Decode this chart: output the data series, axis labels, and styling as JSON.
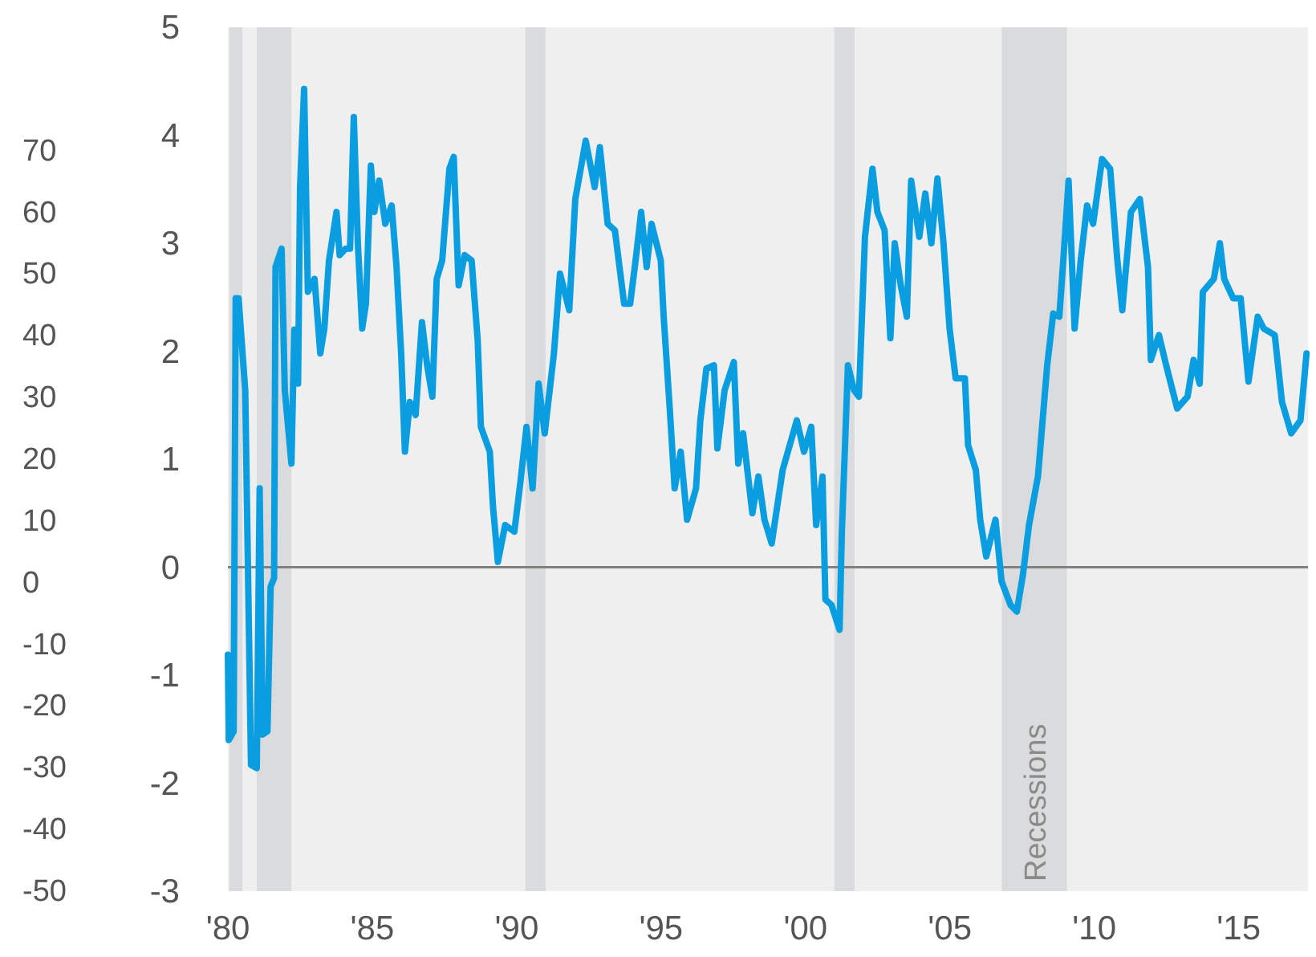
{
  "chart_data": {
    "type": "line",
    "grid": false,
    "marker": "none",
    "line_style": "solid",
    "xlim": [
      1980,
      2017.4
    ],
    "xticks": [
      {
        "value": 1980,
        "label": "'80"
      },
      {
        "value": 1985,
        "label": "'85"
      },
      {
        "value": 1990,
        "label": "'90"
      },
      {
        "value": 1995,
        "label": "'95"
      },
      {
        "value": 2000,
        "label": "'00"
      },
      {
        "value": 2005,
        "label": "'05"
      },
      {
        "value": 2010,
        "label": "'10"
      },
      {
        "value": 2015,
        "label": "'15"
      }
    ],
    "ylim": [
      -3,
      5
    ],
    "yticks": [
      -3,
      -2,
      -1,
      0,
      1,
      2,
      3,
      4,
      5
    ],
    "y2lim": [
      -50,
      90
    ],
    "y2ticks": [
      -50,
      -40,
      -30,
      -20,
      -10,
      0,
      10,
      20,
      30,
      40,
      50,
      60,
      70
    ],
    "ref_lines": [
      {
        "axis": "y",
        "value": 0,
        "color": "#808080"
      }
    ],
    "bands": [
      {
        "axis": "x",
        "from": 1980.05,
        "to": 1980.5,
        "color": "#dadbdd"
      },
      {
        "axis": "x",
        "from": 1981.0,
        "to": 1982.2,
        "color": "#dadbdd"
      },
      {
        "axis": "x",
        "from": 1990.3,
        "to": 1991.0,
        "color": "#dadbdd"
      },
      {
        "axis": "x",
        "from": 2001.0,
        "to": 2001.7,
        "color": "#dadbdd"
      },
      {
        "axis": "x",
        "from": 2006.8,
        "to": 2009.05,
        "color": "#dadbdd",
        "label": "Recessions"
      }
    ],
    "series": [
      {
        "color": "#0a9ee0",
        "x": [
          1980.0,
          1980.03,
          1980.2,
          1980.27,
          1980.37,
          1980.6,
          1980.8,
          1981.0,
          1981.1,
          1981.2,
          1981.37,
          1981.48,
          1981.6,
          1981.65,
          1981.86,
          1981.97,
          1982.2,
          1982.3,
          1982.43,
          1982.5,
          1982.64,
          1982.77,
          1983.0,
          1983.2,
          1983.34,
          1983.5,
          1983.76,
          1983.87,
          1984.08,
          1984.23,
          1984.36,
          1984.5,
          1984.65,
          1984.78,
          1984.95,
          1985.07,
          1985.24,
          1985.45,
          1985.67,
          1985.84,
          1986.0,
          1986.13,
          1986.3,
          1986.5,
          1986.72,
          1986.9,
          1987.08,
          1987.23,
          1987.42,
          1987.67,
          1987.82,
          1987.99,
          1988.2,
          1988.44,
          1988.65,
          1988.76,
          1989.07,
          1989.18,
          1989.35,
          1989.6,
          1989.92,
          1990.13,
          1990.34,
          1990.55,
          1990.76,
          1990.97,
          1991.29,
          1991.5,
          1991.82,
          1992.03,
          1992.39,
          1992.7,
          1992.88,
          1993.15,
          1993.4,
          1993.72,
          1993.93,
          1994.14,
          1994.31,
          1994.5,
          1994.67,
          1994.99,
          1995.09,
          1995.3,
          1995.47,
          1995.68,
          1995.9,
          1996.21,
          1996.36,
          1996.57,
          1996.83,
          1996.95,
          1997.2,
          1997.52,
          1997.67,
          1997.84,
          1998.16,
          1998.37,
          1998.58,
          1998.83,
          1999.21,
          1999.7,
          1999.95,
          2000.2,
          2000.37,
          2000.59,
          2000.69,
          2000.9,
          2001.18,
          2001.26,
          2001.47,
          2001.68,
          2001.85,
          2002.06,
          2002.32,
          2002.49,
          2002.74,
          2002.94,
          2003.09,
          2003.3,
          2003.51,
          2003.66,
          2003.94,
          2004.15,
          2004.36,
          2004.57,
          2004.78,
          2004.99,
          2005.2,
          2005.52,
          2005.63,
          2005.9,
          2006.05,
          2006.26,
          2006.58,
          2006.79,
          2007.1,
          2007.32,
          2007.53,
          2007.74,
          2008.05,
          2008.37,
          2008.58,
          2008.79,
          2008.94,
          2009.11,
          2009.32,
          2009.53,
          2009.75,
          2009.96,
          2010.27,
          2010.55,
          2010.8,
          2010.97,
          2011.27,
          2011.58,
          2011.86,
          2011.96,
          2012.24,
          2012.49,
          2012.87,
          2013.23,
          2013.44,
          2013.65,
          2013.76,
          2014.14,
          2014.35,
          2014.5,
          2014.81,
          2015.07,
          2015.34,
          2015.66,
          2015.87,
          2016.25,
          2016.5,
          2016.82,
          2017.14,
          2017.35
        ],
        "values": [
          -0.81,
          -1.6,
          -1.52,
          2.49,
          2.49,
          1.64,
          -1.83,
          -1.86,
          0.73,
          -1.55,
          -1.52,
          -0.18,
          -0.1,
          2.78,
          2.95,
          1.64,
          0.96,
          2.2,
          1.7,
          3.52,
          4.43,
          2.55,
          2.67,
          1.98,
          2.21,
          2.84,
          3.29,
          2.89,
          2.95,
          2.95,
          4.17,
          3.0,
          2.21,
          2.44,
          3.72,
          3.29,
          3.58,
          3.18,
          3.35,
          2.78,
          1.98,
          1.07,
          1.53,
          1.41,
          2.27,
          1.87,
          1.58,
          2.67,
          2.84,
          3.69,
          3.8,
          2.61,
          2.89,
          2.84,
          2.1,
          1.3,
          1.07,
          0.56,
          0.05,
          0.39,
          0.33,
          0.79,
          1.3,
          0.73,
          1.7,
          1.24,
          1.98,
          2.72,
          2.38,
          3.41,
          3.95,
          3.52,
          3.89,
          3.18,
          3.12,
          2.44,
          2.44,
          2.89,
          3.29,
          2.78,
          3.18,
          2.84,
          2.32,
          1.47,
          0.73,
          1.07,
          0.44,
          0.73,
          1.36,
          1.84,
          1.87,
          1.1,
          1.64,
          1.9,
          0.96,
          1.24,
          0.5,
          0.84,
          0.44,
          0.22,
          0.9,
          1.36,
          1.07,
          1.3,
          0.39,
          0.84,
          -0.3,
          -0.35,
          -0.58,
          0.33,
          1.87,
          1.64,
          1.58,
          3.06,
          3.69,
          3.29,
          3.12,
          2.12,
          3.0,
          2.61,
          2.32,
          3.58,
          3.06,
          3.46,
          3.0,
          3.6,
          3.0,
          2.21,
          1.75,
          1.75,
          1.13,
          0.9,
          0.44,
          0.1,
          0.44,
          -0.13,
          -0.35,
          -0.41,
          -0.07,
          0.39,
          0.84,
          1.87,
          2.35,
          2.32,
          2.89,
          3.58,
          2.21,
          2.84,
          3.35,
          3.18,
          3.78,
          3.69,
          2.84,
          2.38,
          3.29,
          3.41,
          2.78,
          1.92,
          2.15,
          1.87,
          1.47,
          1.58,
          1.92,
          1.7,
          2.55,
          2.67,
          3.0,
          2.67,
          2.49,
          2.49,
          1.72,
          2.32,
          2.21,
          2.15,
          1.53,
          1.24,
          1.36,
          1.98
        ]
      }
    ]
  }
}
